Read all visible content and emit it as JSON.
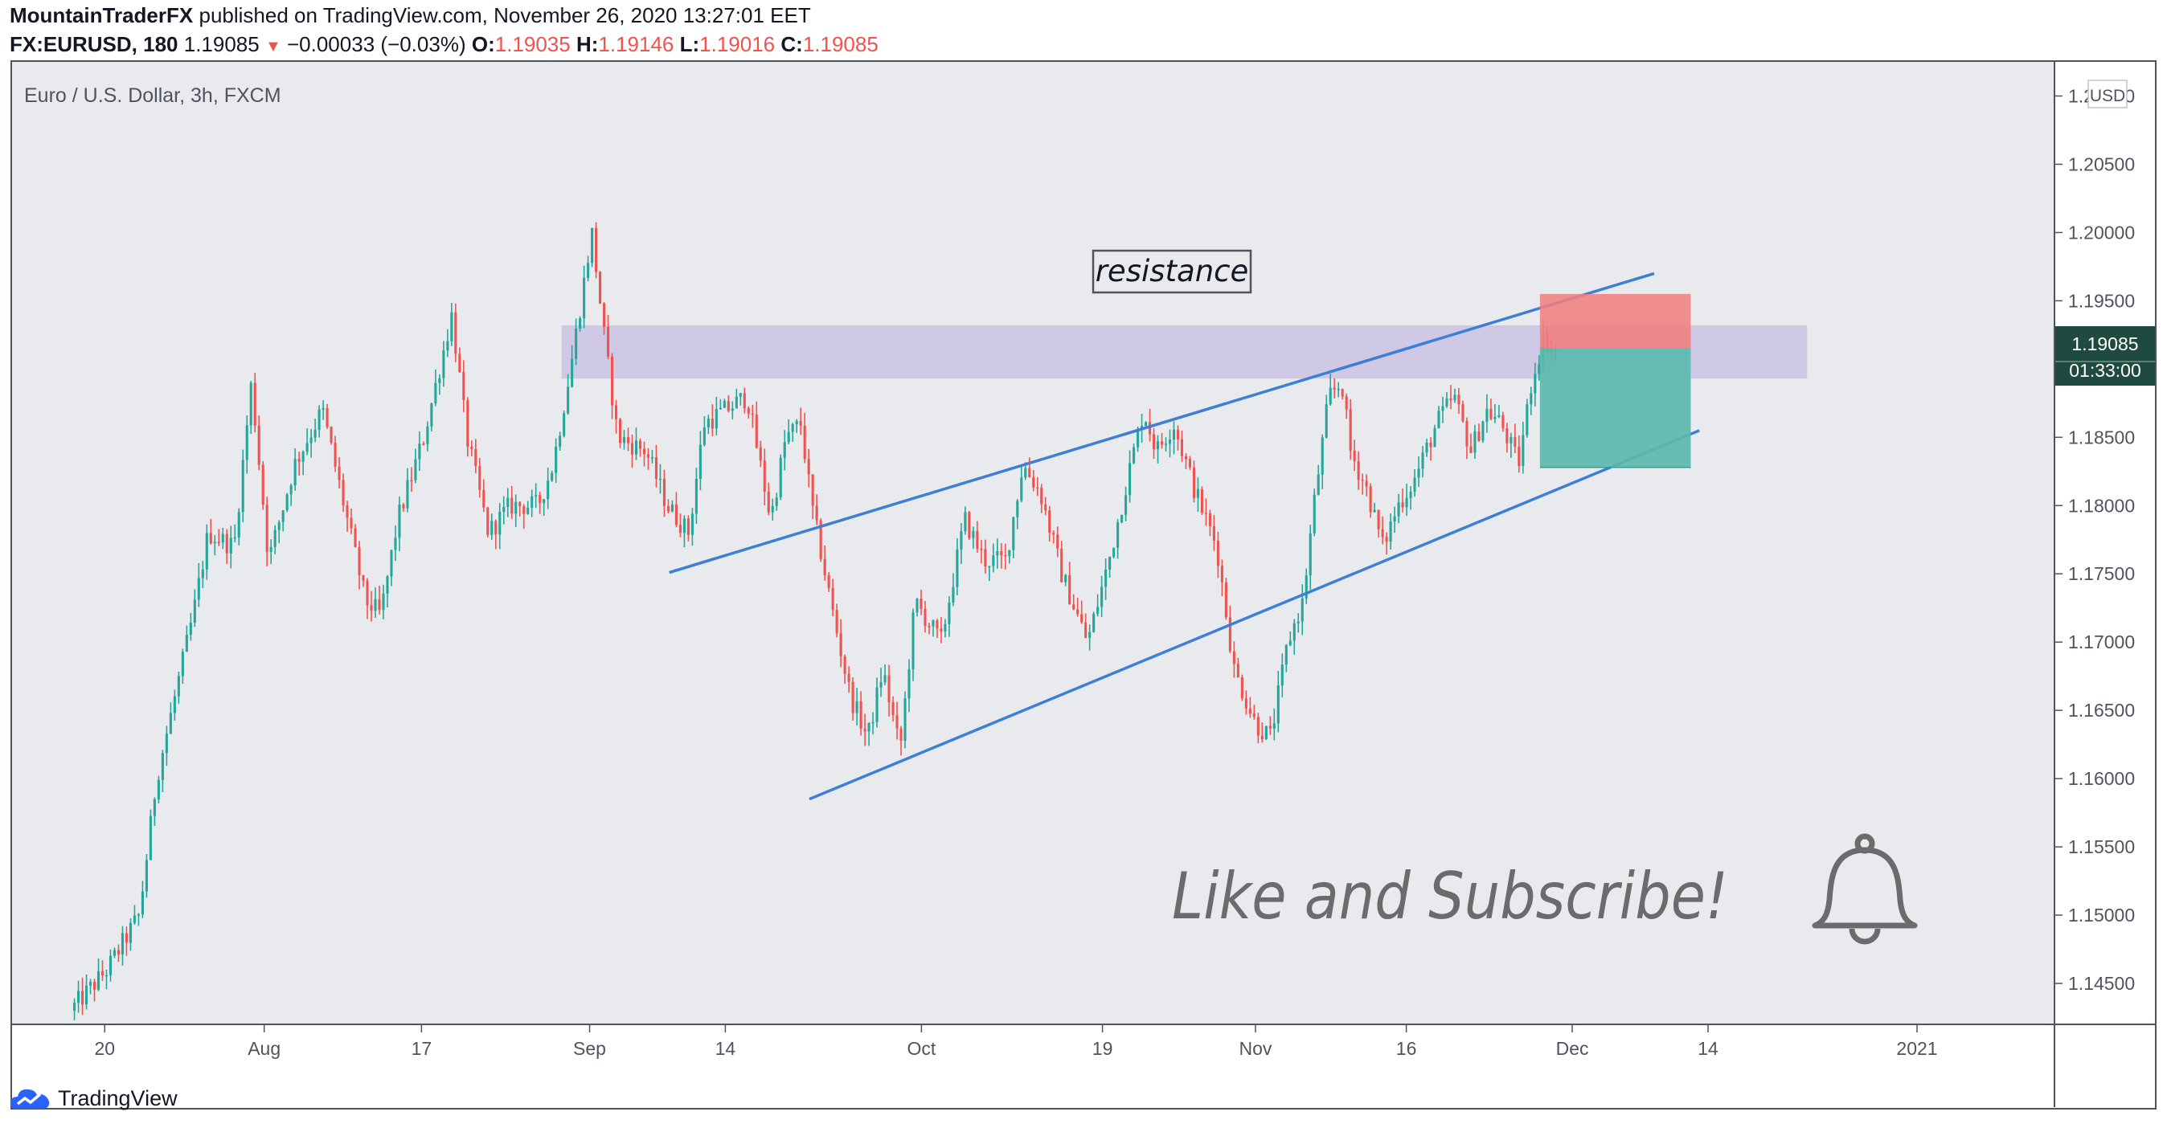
{
  "header": {
    "author": "MountainTraderFX",
    "published_text": "published on TradingView.com, November 26, 2020 13:27:01 EET",
    "symbol": "FX:EURUSD, 180",
    "last": "1.19085",
    "change": "−0.00033 (−0.03%)",
    "o_label": "O:",
    "o_val": "1.19035",
    "h_label": "H:",
    "h_val": "1.19146",
    "l_label": "L:",
    "l_val": "1.19016",
    "c_label": "C:",
    "c_val": "1.19085"
  },
  "chart_data": {
    "type": "candlestick",
    "title": "Euro / U.S. Dollar, 3h, FXCM",
    "currency": "USD",
    "ylim": [
      1.142,
      1.2125
    ],
    "y_ticks": [
      "1.21000",
      "1.20500",
      "1.20000",
      "1.19500",
      "1.19000",
      "1.18500",
      "1.18000",
      "1.17500",
      "1.17000",
      "1.16500",
      "1.16000",
      "1.15500",
      "1.15000",
      "1.14500"
    ],
    "y_tick_values": [
      1.21,
      1.205,
      1.2,
      1.195,
      1.19,
      1.185,
      1.18,
      1.175,
      1.17,
      1.165,
      1.16,
      1.155,
      1.15,
      1.145
    ],
    "x_ticks": [
      {
        "label": "20",
        "t": 0.043
      },
      {
        "label": "Aug",
        "t": 0.117
      },
      {
        "label": "17",
        "t": 0.19
      },
      {
        "label": "Sep",
        "t": 0.268
      },
      {
        "label": "14",
        "t": 0.331
      },
      {
        "label": "Oct",
        "t": 0.422
      },
      {
        "label": "19",
        "t": 0.506
      },
      {
        "label": "Nov",
        "t": 0.577
      },
      {
        "label": "16",
        "t": 0.647
      },
      {
        "label": "Dec",
        "t": 0.724
      },
      {
        "label": "14",
        "t": 0.787
      },
      {
        "label": "2021",
        "t": 0.884
      }
    ],
    "price_path": [
      {
        "t": 0.028,
        "p": 1.143
      },
      {
        "t": 0.045,
        "p": 1.146
      },
      {
        "t": 0.06,
        "p": 1.15
      },
      {
        "t": 0.068,
        "p": 1.16
      },
      {
        "t": 0.085,
        "p": 1.172
      },
      {
        "t": 0.092,
        "p": 1.178
      },
      {
        "t": 0.104,
        "p": 1.177
      },
      {
        "t": 0.112,
        "p": 1.189
      },
      {
        "t": 0.12,
        "p": 1.176
      },
      {
        "t": 0.132,
        "p": 1.183
      },
      {
        "t": 0.145,
        "p": 1.187
      },
      {
        "t": 0.155,
        "p": 1.18
      },
      {
        "t": 0.165,
        "p": 1.173
      },
      {
        "t": 0.172,
        "p": 1.172
      },
      {
        "t": 0.18,
        "p": 1.179
      },
      {
        "t": 0.192,
        "p": 1.185
      },
      {
        "t": 0.205,
        "p": 1.194
      },
      {
        "t": 0.212,
        "p": 1.185
      },
      {
        "t": 0.222,
        "p": 1.178
      },
      {
        "t": 0.232,
        "p": 1.18
      },
      {
        "t": 0.245,
        "p": 1.18
      },
      {
        "t": 0.252,
        "p": 1.183
      },
      {
        "t": 0.26,
        "p": 1.19
      },
      {
        "t": 0.27,
        "p": 1.2
      },
      {
        "t": 0.276,
        "p": 1.192
      },
      {
        "t": 0.282,
        "p": 1.185
      },
      {
        "t": 0.295,
        "p": 1.184
      },
      {
        "t": 0.305,
        "p": 1.18
      },
      {
        "t": 0.315,
        "p": 1.178
      },
      {
        "t": 0.322,
        "p": 1.186
      },
      {
        "t": 0.332,
        "p": 1.187
      },
      {
        "t": 0.342,
        "p": 1.188
      },
      {
        "t": 0.353,
        "p": 1.179
      },
      {
        "t": 0.36,
        "p": 1.185
      },
      {
        "t": 0.367,
        "p": 1.186
      },
      {
        "t": 0.372,
        "p": 1.18
      },
      {
        "t": 0.382,
        "p": 1.172
      },
      {
        "t": 0.39,
        "p": 1.166
      },
      {
        "t": 0.398,
        "p": 1.163
      },
      {
        "t": 0.405,
        "p": 1.168
      },
      {
        "t": 0.413,
        "p": 1.162
      },
      {
        "t": 0.42,
        "p": 1.173
      },
      {
        "t": 0.432,
        "p": 1.17
      },
      {
        "t": 0.443,
        "p": 1.179
      },
      {
        "t": 0.452,
        "p": 1.176
      },
      {
        "t": 0.462,
        "p": 1.176
      },
      {
        "t": 0.47,
        "p": 1.183
      },
      {
        "t": 0.478,
        "p": 1.181
      },
      {
        "t": 0.488,
        "p": 1.175
      },
      {
        "t": 0.5,
        "p": 1.17
      },
      {
        "t": 0.51,
        "p": 1.176
      },
      {
        "t": 0.52,
        "p": 1.183
      },
      {
        "t": 0.526,
        "p": 1.187
      },
      {
        "t": 0.532,
        "p": 1.184
      },
      {
        "t": 0.54,
        "p": 1.186
      },
      {
        "t": 0.55,
        "p": 1.181
      },
      {
        "t": 0.56,
        "p": 1.177
      },
      {
        "t": 0.568,
        "p": 1.168
      },
      {
        "t": 0.578,
        "p": 1.164
      },
      {
        "t": 0.585,
        "p": 1.163
      },
      {
        "t": 0.593,
        "p": 1.17
      },
      {
        "t": 0.6,
        "p": 1.173
      },
      {
        "t": 0.605,
        "p": 1.18
      },
      {
        "t": 0.612,
        "p": 1.188
      },
      {
        "t": 0.618,
        "p": 1.189
      },
      {
        "t": 0.622,
        "p": 1.184
      },
      {
        "t": 0.63,
        "p": 1.181
      },
      {
        "t": 0.637,
        "p": 1.177
      },
      {
        "t": 0.644,
        "p": 1.18
      },
      {
        "t": 0.652,
        "p": 1.182
      },
      {
        "t": 0.662,
        "p": 1.186
      },
      {
        "t": 0.67,
        "p": 1.188
      },
      {
        "t": 0.678,
        "p": 1.184
      },
      {
        "t": 0.685,
        "p": 1.187
      },
      {
        "t": 0.692,
        "p": 1.186
      },
      {
        "t": 0.7,
        "p": 1.183
      },
      {
        "t": 0.706,
        "p": 1.189
      },
      {
        "t": 0.712,
        "p": 1.1925
      },
      {
        "t": 0.717,
        "p": 1.1908
      }
    ],
    "annotations": {
      "resistance_label": "resistance",
      "cta_text": "Like and Subscribe!",
      "price_tag": "1.19085",
      "countdown": "01:33:00"
    },
    "resistance_zone": {
      "from": 1.1893,
      "to": 1.1932,
      "t_start": 0.255,
      "t_end": 0.833
    },
    "channel_upper": [
      {
        "t": 0.305,
        "p": 1.1751
      },
      {
        "t": 0.762,
        "p": 1.197
      }
    ],
    "channel_lower": [
      {
        "t": 0.37,
        "p": 1.1585
      },
      {
        "t": 0.783,
        "p": 1.1855
      }
    ],
    "short_position": {
      "t_start": 0.709,
      "t_end": 0.779,
      "entry": 1.19155,
      "stop": 1.1955,
      "target": 1.1828
    },
    "colors": {
      "up": "#26a69a",
      "down": "#ef5350",
      "bg": "#e8eaed",
      "zone": "#cbc3e3",
      "line": "#3d7fd4",
      "stop": "#f08080",
      "target": "#5bb8ae",
      "tag": "#1e4a3f"
    }
  },
  "footer": {
    "brand": "TradingView"
  }
}
